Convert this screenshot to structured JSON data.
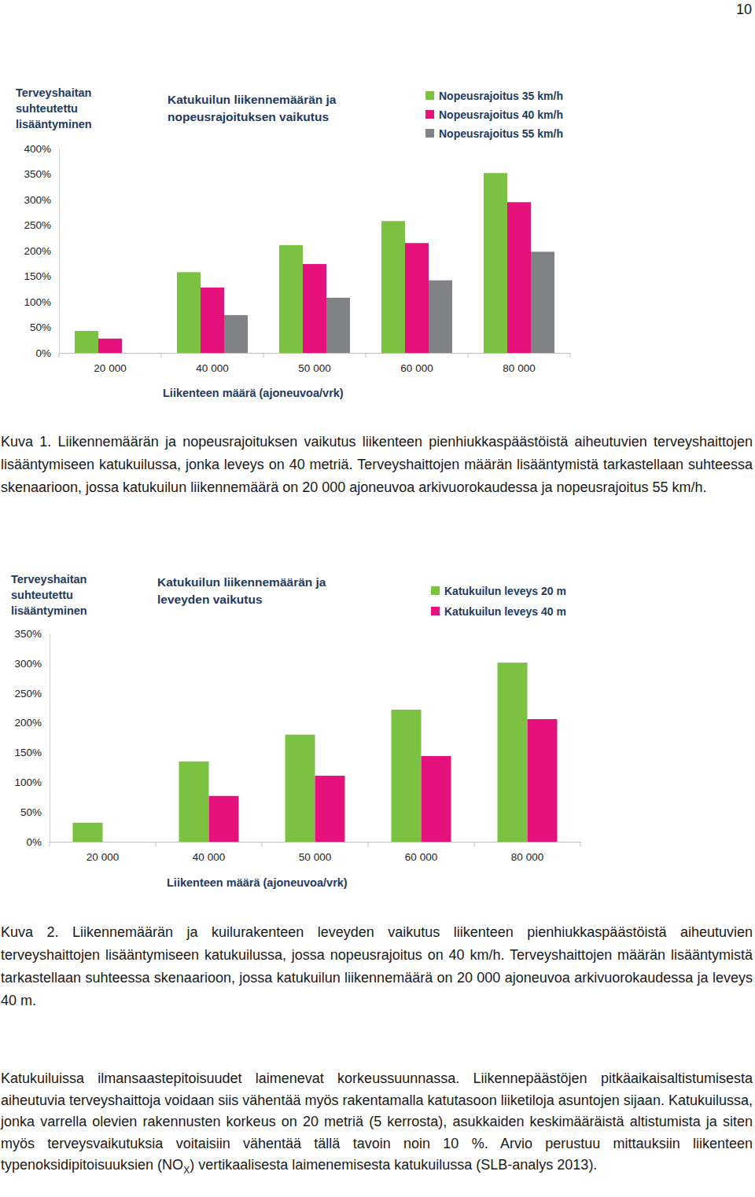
{
  "page_number": "10",
  "chart_data": [
    {
      "type": "bar",
      "title": "Katukuilun liikennemäärän ja nopeusrajoituksen vaikutus",
      "y_label": "Terveyshaitan suhteutettu lisääntyminen",
      "x_label": "Liikenteen määrä (ajoneuvoa/vrk)",
      "categories": [
        "20 000",
        "40 000",
        "50 000",
        "60 000",
        "80 000"
      ],
      "series": [
        {
          "name": "Nopeusrajoitus 35 km/h",
          "color": "#7cc242",
          "values": [
            43,
            158,
            211,
            258,
            352
          ]
        },
        {
          "name": "Nopeusrajoitus 40 km/h",
          "color": "#e5127d",
          "values": [
            28,
            128,
            174,
            215,
            295
          ]
        },
        {
          "name": "Nopeusrajoitus 55 km/h",
          "color": "#808285",
          "values": [
            null,
            74,
            108,
            142,
            198
          ]
        }
      ],
      "ylim": [
        0,
        400
      ],
      "yticks": [
        {
          "value": 0,
          "label": "0%"
        },
        {
          "value": 50,
          "label": "50%"
        },
        {
          "value": 100,
          "label": "100%"
        },
        {
          "value": 150,
          "label": "150%"
        },
        {
          "value": 200,
          "label": "200%"
        },
        {
          "value": 250,
          "label": "250%"
        },
        {
          "value": 300,
          "label": "300%"
        },
        {
          "value": 350,
          "label": "350%"
        },
        {
          "value": 400,
          "label": "400%"
        }
      ],
      "grid": false,
      "legend": "top-right"
    },
    {
      "type": "bar",
      "title": "Katukuilun liikennemäärän ja leveyden vaikutus",
      "y_label": "Terveyshaitan suhteutettu lisääntyminen",
      "x_label": "Liikenteen määrä (ajoneuvoa/vrk)",
      "categories": [
        "20 000",
        "40 000",
        "50 000",
        "60 000",
        "80 000"
      ],
      "series": [
        {
          "name": "Katukuilun leveys 20 m",
          "color": "#7cc242",
          "values": [
            32,
            135,
            180,
            222,
            301
          ]
        },
        {
          "name": "Katukuilun leveys 40 m",
          "color": "#e5127d",
          "values": [
            null,
            77,
            111,
            144,
            206
          ]
        }
      ],
      "ylim": [
        0,
        350
      ],
      "yticks": [
        {
          "value": 0,
          "label": "0%"
        },
        {
          "value": 50,
          "label": "50%"
        },
        {
          "value": 100,
          "label": "100%"
        },
        {
          "value": 150,
          "label": "150%"
        },
        {
          "value": 200,
          "label": "200%"
        },
        {
          "value": 250,
          "label": "250%"
        },
        {
          "value": 300,
          "label": "300%"
        },
        {
          "value": 350,
          "label": "350%"
        }
      ],
      "grid": false,
      "legend": "top-right"
    }
  ],
  "captions": [
    "Kuva 1. Liikennemäärän ja nopeusrajoituksen vaikutus liikenteen pienhiukkaspäästöistä aiheutuvien terveyshaittojen lisääntymiseen katukuilussa, jonka leveys on 40 metriä. Terveyshaittojen määrän lisääntymistä tarkastellaan suhteessa skenaarioon, jossa katukuilun liikennemäärä on 20 000 ajoneuvoa arkivuorokaudessa ja nopeusrajoitus 55 km/h.",
    "Kuva 2. Liikennemäärän ja kuilurakenteen leveyden vaikutus liikenteen pienhiukkaspäästöistä aiheutuvien terveyshaittojen lisääntymiseen katukuilussa, jossa nopeusrajoitus on 40 km/h. Terveyshaittojen määrän lisääntymistä tarkastellaan suhteessa skenaarioon, jossa katukuilun liikennemäärä on 20 000 ajoneuvoa arkivuorokaudessa ja leveys 40 m."
  ],
  "paragraph": [
    {
      "text": "Katukuiluissa ilmansaastepitoisuudet laimenevat korkeussuunnassa. Liikennepäästöjen pitkäaikaisaltistumisesta aiheutuvia terveyshaittoja voidaan siis vähentää myös rakentamalla katutasoon liiketiloja asuntojen sijaan. Katukuilussa, jonka varrella olevien rakennusten korkeus on 20 metriä (5 kerrosta), asukkaiden keskimääräistä altistumista ja siten myös terveysvaikutuksia voitaisiin vähentää tällä tavoin noin 10 %. Arvio perustuu mittauksiin liikenteen typenoksidipitoisuuksien (NO",
      "subscript": false
    },
    {
      "text": "X",
      "subscript": true
    },
    {
      "text": ") vertikaalisesta laimenemisesta katukuilussa (SLB-analys 2013).",
      "subscript": false
    }
  ]
}
